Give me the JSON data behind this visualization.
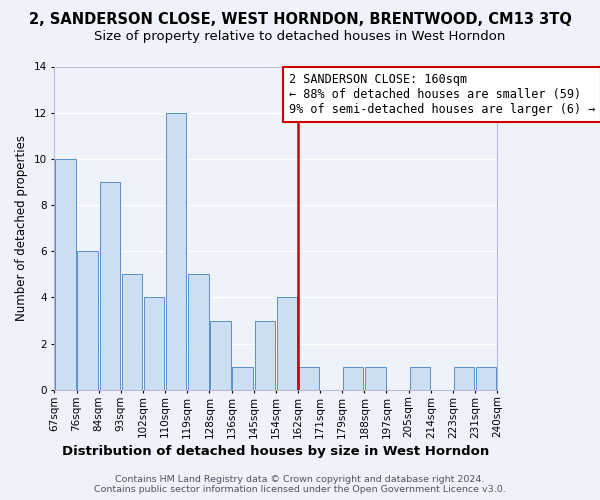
{
  "title": "2, SANDERSON CLOSE, WEST HORNDON, BRENTWOOD, CM13 3TQ",
  "subtitle": "Size of property relative to detached houses in West Horndon",
  "xlabel": "Distribution of detached houses by size in West Horndon",
  "ylabel": "Number of detached properties",
  "bar_color": "#ccdff2",
  "bar_edge_color": "#5a8fc4",
  "background_color": "#eef2fb",
  "grid_color": "white",
  "bin_labels": [
    "67sqm",
    "76sqm",
    "84sqm",
    "93sqm",
    "102sqm",
    "110sqm",
    "119sqm",
    "128sqm",
    "136sqm",
    "145sqm",
    "154sqm",
    "162sqm",
    "171sqm",
    "179sqm",
    "188sqm",
    "197sqm",
    "205sqm",
    "214sqm",
    "223sqm",
    "231sqm",
    "240sqm"
  ],
  "values": [
    10,
    6,
    9,
    5,
    4,
    12,
    5,
    3,
    1,
    3,
    4,
    1,
    0,
    1,
    1,
    0,
    1,
    0,
    1,
    1
  ],
  "ylim": [
    0,
    14
  ],
  "yticks": [
    0,
    2,
    4,
    6,
    8,
    10,
    12,
    14
  ],
  "vline_position": 11,
  "vline_color": "#cc0000",
  "annotation_title": "2 SANDERSON CLOSE: 160sqm",
  "annotation_line1": "← 88% of detached houses are smaller (59)",
  "annotation_line2": "9% of semi-detached houses are larger (6) →",
  "annotation_box_color": "white",
  "annotation_box_edge": "#cc0000",
  "footer1": "Contains HM Land Registry data © Crown copyright and database right 2024.",
  "footer2": "Contains public sector information licensed under the Open Government Licence v3.0.",
  "title_fontsize": 10.5,
  "subtitle_fontsize": 9.5,
  "xlabel_fontsize": 9.5,
  "ylabel_fontsize": 8.5,
  "tick_fontsize": 7.5,
  "annotation_fontsize": 8.5,
  "footer_fontsize": 6.8
}
